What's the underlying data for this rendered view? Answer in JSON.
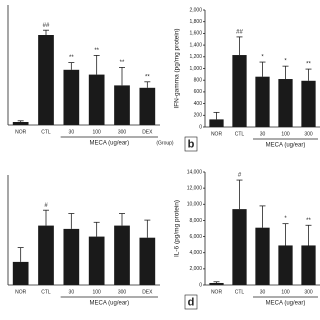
{
  "chart_data": [
    {
      "type": "bar",
      "categories": [
        "NOR",
        "CTL",
        "30",
        "100",
        "300",
        "DEX"
      ],
      "values": [
        2.5,
        75,
        46,
        42,
        33,
        31
      ],
      "errors": [
        1,
        4,
        6,
        16,
        15,
        5
      ],
      "annotations": [
        null,
        "##",
        "**",
        "**",
        "**",
        "**"
      ],
      "ylim": [
        0,
        100
      ],
      "xlabel": "MECA (ug/ear)",
      "group_label": "(Group)",
      "color": "#1a1a1a"
    },
    {
      "type": "bar",
      "categories": [
        "NOR",
        "CTL",
        "30",
        "100",
        "300"
      ],
      "values": [
        130,
        1230,
        860,
        820,
        790
      ],
      "errors": [
        120,
        310,
        250,
        220,
        200
      ],
      "annotations": [
        null,
        "##",
        "*",
        "*",
        "**"
      ],
      "ylim": [
        0,
        2000
      ],
      "yticks": [
        0,
        200,
        400,
        600,
        800,
        {
          "value": 1000,
          "label": "1,000"
        },
        {
          "value": 1200,
          "label": "1,200"
        },
        {
          "value": 1400,
          "label": "1,400"
        },
        {
          "value": 1600,
          "label": "1,600"
        },
        {
          "value": 1800,
          "label": "1,800"
        },
        {
          "value": 2000,
          "label": "2,000"
        }
      ],
      "ylabel": "IFN-gamma (pg/mg protein)",
      "xlabel": "MECA (ug/ear)",
      "panel": "b",
      "color": "#1a1a1a"
    },
    {
      "type": "bar",
      "categories": [
        "NOR",
        "CTL",
        "30",
        "100",
        "300",
        "DEX"
      ],
      "values": [
        21,
        54,
        51,
        44,
        54,
        43
      ],
      "errors": [
        13,
        14,
        14,
        13,
        11,
        16
      ],
      "annotations": [
        null,
        "#",
        null,
        null,
        null,
        null
      ],
      "ylim": [
        0,
        100
      ],
      "xlabel": "MECA (ug/ear)",
      "color": "#1a1a1a"
    },
    {
      "type": "bar",
      "categories": [
        "NOR",
        "CTL",
        "30",
        "100",
        "300"
      ],
      "values": [
        250,
        9400,
        7100,
        4900,
        4900
      ],
      "errors": [
        150,
        3600,
        2700,
        2700,
        2500
      ],
      "annotations": [
        null,
        "#",
        null,
        "*",
        "**"
      ],
      "ylim": [
        0,
        14000
      ],
      "yticks": [
        0,
        {
          "value": 2000,
          "label": "2,000"
        },
        {
          "value": 4000,
          "label": "4,000"
        },
        {
          "value": 6000,
          "label": "6,000"
        },
        {
          "value": 8000,
          "label": "8,000"
        },
        {
          "value": 10000,
          "label": "10,000"
        },
        {
          "value": 12000,
          "label": "12,000"
        },
        {
          "value": 14000,
          "label": "14,000"
        }
      ],
      "ylabel": "IL-6 (pg/mg protein)",
      "xlabel": "MECA (ug/ear)",
      "panel": "d",
      "color": "#1a1a1a"
    }
  ]
}
